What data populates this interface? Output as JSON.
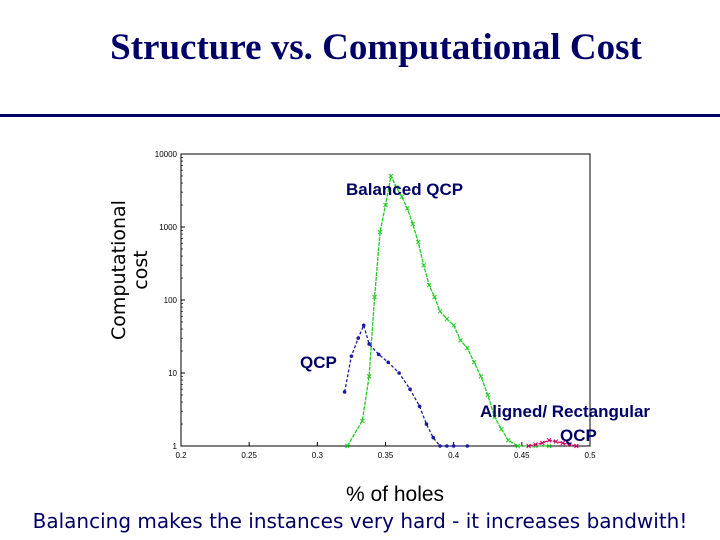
{
  "slide": {
    "title": "Structure  vs. Computational Cost",
    "footer": "Balancing makes the instances very hard - it increases bandwith!"
  },
  "colors": {
    "title": "#000066",
    "balanced": "#22cc22",
    "qcp": "#1a1aa0",
    "aligned": "#cc0066"
  },
  "chart_data": {
    "type": "line",
    "xlabel": "% of holes",
    "ylabel": "Computational cost",
    "xlim": [
      0.2,
      0.5
    ],
    "ylim": [
      1,
      10000
    ],
    "yscale": "log",
    "xticks": [
      "0.2",
      "0.25",
      "0.3",
      "0.35",
      "0.4",
      "0.45",
      "0.5"
    ],
    "yticks": [
      "1",
      "10",
      "100",
      "1000",
      "10000"
    ],
    "grid": false,
    "annotations": {
      "balanced": "Balanced QCP",
      "qcp": "QCP",
      "aligned_line1": "Aligned/ Rectangular",
      "aligned_line2": "QCP"
    },
    "series": [
      {
        "key": "balanced",
        "x": [
          0.322,
          0.333,
          0.338,
          0.342,
          0.346,
          0.35,
          0.354,
          0.358,
          0.362,
          0.366,
          0.37,
          0.374,
          0.378,
          0.382,
          0.386,
          0.39,
          0.395,
          0.4,
          0.405,
          0.41,
          0.415,
          0.42,
          0.425,
          0.43,
          0.435,
          0.44,
          0.447,
          0.46,
          0.47
        ],
        "y": [
          1,
          2.2,
          9,
          110,
          850,
          2000,
          5000,
          3500,
          2600,
          1800,
          1100,
          620,
          300,
          160,
          110,
          70,
          55,
          45,
          28,
          22,
          14,
          9,
          5,
          2.5,
          1.7,
          1.2,
          1,
          1,
          1
        ]
      },
      {
        "key": "qcp",
        "x": [
          0.32,
          0.325,
          0.33,
          0.334,
          0.338,
          0.345,
          0.352,
          0.36,
          0.368,
          0.375,
          0.38,
          0.385,
          0.39,
          0.395,
          0.4,
          0.41
        ],
        "y": [
          5.5,
          17,
          30,
          45,
          25,
          18,
          14,
          10,
          6,
          3.5,
          2,
          1.3,
          1,
          1,
          1,
          1
        ]
      },
      {
        "key": "aligned",
        "x": [
          0.455,
          0.46,
          0.465,
          0.47,
          0.475,
          0.48,
          0.485,
          0.49
        ],
        "y": [
          1,
          1.05,
          1.1,
          1.2,
          1.15,
          1.1,
          1.05,
          1
        ]
      }
    ]
  }
}
